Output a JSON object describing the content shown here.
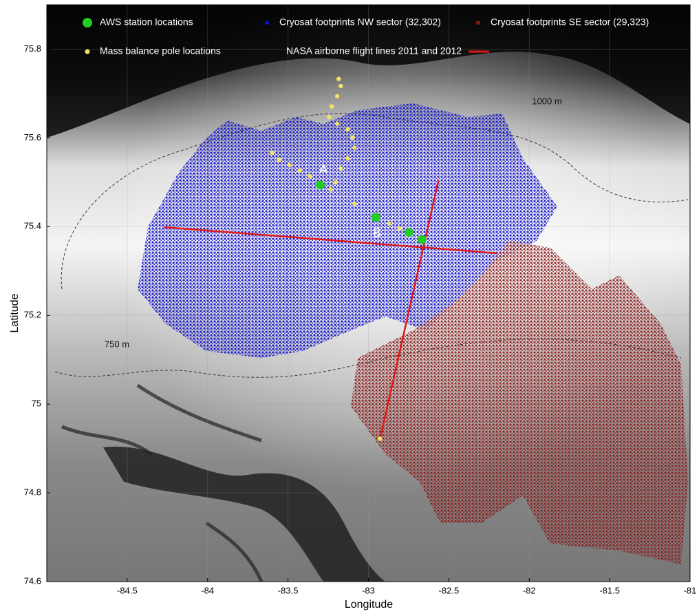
{
  "chart_data": {
    "type": "scatter",
    "xlabel": "Longitude",
    "ylabel": "Latitude",
    "xlim": [
      -85,
      -81
    ],
    "ylim": [
      74.6,
      75.9
    ],
    "xticks": [
      -84.5,
      -84,
      -83.5,
      -83,
      -82.5,
      -82,
      -81.5,
      -81
    ],
    "yticks": [
      74.6,
      74.8,
      75,
      75.2,
      75.4,
      75.6,
      75.8
    ],
    "grid": true,
    "series": [
      {
        "name": "AWS station locations",
        "color": "#22cc22",
        "marker": "circle",
        "x": [
          -83.3,
          -82.954,
          -82.748,
          -82.667
        ],
        "y": [
          75.494,
          75.421,
          75.387,
          75.371
        ]
      },
      {
        "name": "Cryosat footprints NW sector  (32,302)",
        "color": "#1010c8",
        "marker": "region"
      },
      {
        "name": "Cryosat footprints SE sector  (29,323)",
        "color": "#8b1a1a",
        "marker": "region"
      },
      {
        "name": "Mass balance pole locations",
        "color": "#f2e462",
        "marker": "dot",
        "x": [
          -83.185,
          -83.172,
          -83.194,
          -83.228,
          -83.245,
          -83.194,
          -83.129,
          -83.099,
          -83.087,
          -83.129,
          -83.172,
          -83.202,
          -83.6,
          -83.557,
          -83.493,
          -83.429,
          -83.365,
          -83.236,
          -83.087,
          -82.872,
          -82.808,
          -82.928
        ],
        "y": [
          75.733,
          75.717,
          75.694,
          75.671,
          75.647,
          75.632,
          75.619,
          75.601,
          75.578,
          75.554,
          75.531,
          75.5,
          75.567,
          75.551,
          75.539,
          75.526,
          75.514,
          75.484,
          75.452,
          75.407,
          75.396,
          74.922
        ]
      },
      {
        "name": "NASA airborne flight lines 2011 and 2012",
        "color": "#e01818",
        "marker": "line",
        "x": [
          -84.272,
          -82.196,
          null,
          -82.928,
          -82.564
        ],
        "y": [
          75.399,
          75.34,
          null,
          74.922,
          75.505
        ]
      }
    ],
    "annotations": [
      "A",
      "B",
      "1000 m",
      "750 m"
    ]
  }
}
